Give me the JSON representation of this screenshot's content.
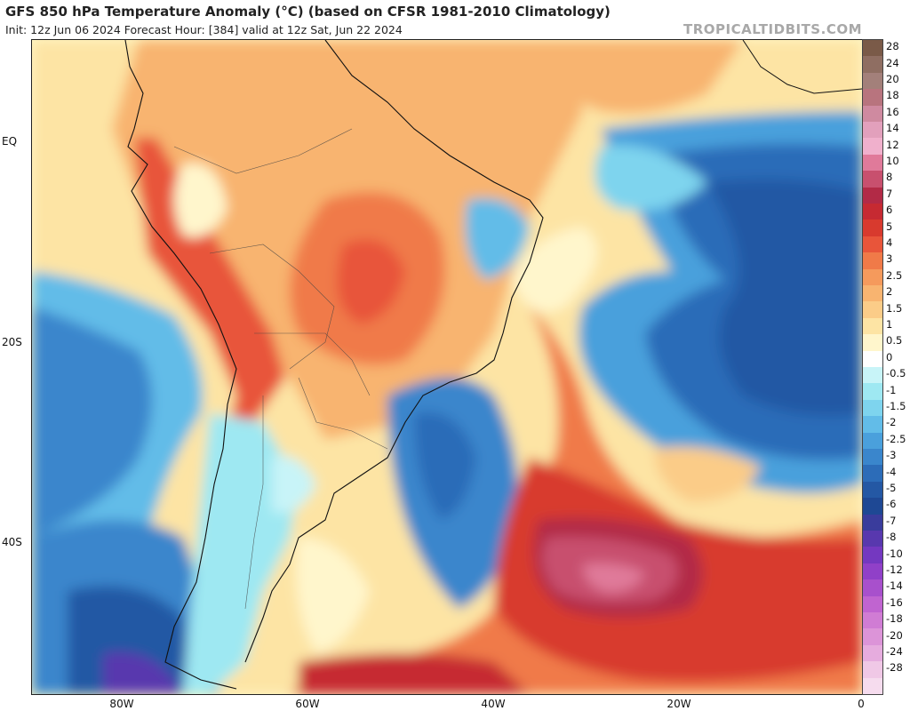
{
  "header": {
    "title": "GFS 850 hPa Temperature Anomaly (°C) (based on CFSR 1981-2010 Climatology)",
    "subtitle": "Init: 12z Jun 06 2024   Forecast Hour: [384]   valid at 12z Sat, Jun 22 2024",
    "watermark": "TROPICALTIDBITS.COM"
  },
  "map": {
    "lat_ticks": [
      "EQ",
      "20S",
      "40S"
    ],
    "lon_ticks": [
      "80W",
      "60W",
      "40W",
      "20W",
      "0"
    ]
  },
  "colorbar": {
    "levels": [
      {
        "label": "28",
        "color": "#7a5a48"
      },
      {
        "label": "24",
        "color": "#8f6e62"
      },
      {
        "label": "20",
        "color": "#a3807a"
      },
      {
        "label": "18",
        "color": "#b8747e"
      },
      {
        "label": "16",
        "color": "#cf8aa0"
      },
      {
        "label": "14",
        "color": "#e2a0bc"
      },
      {
        "label": "12",
        "color": "#f0b0cc"
      },
      {
        "label": "10",
        "color": "#e07a9a"
      },
      {
        "label": "8",
        "color": "#c8506e"
      },
      {
        "label": "7",
        "color": "#b22a46"
      },
      {
        "label": "6",
        "color": "#c62a32"
      },
      {
        "label": "5",
        "color": "#d83a2e"
      },
      {
        "label": "4",
        "color": "#e8553a"
      },
      {
        "label": "3",
        "color": "#f07a48"
      },
      {
        "label": "2.5",
        "color": "#f59a5c"
      },
      {
        "label": "2",
        "color": "#f8b470"
      },
      {
        "label": "1.5",
        "color": "#fbcc88"
      },
      {
        "label": "1",
        "color": "#fde4a4"
      },
      {
        "label": "0.5",
        "color": "#fff6cc"
      },
      {
        "label": "0",
        "color": "#ffffff"
      },
      {
        "label": "-0.5",
        "color": "#c8f4f8"
      },
      {
        "label": "-1",
        "color": "#9ee8f2"
      },
      {
        "label": "-1.5",
        "color": "#7ed4ee"
      },
      {
        "label": "-2",
        "color": "#62bce8"
      },
      {
        "label": "-2.5",
        "color": "#4aa0dc"
      },
      {
        "label": "-3",
        "color": "#3a86cc"
      },
      {
        "label": "-4",
        "color": "#2c6cb8"
      },
      {
        "label": "-5",
        "color": "#2458a4"
      },
      {
        "label": "-6",
        "color": "#1e4894"
      },
      {
        "label": "-7",
        "color": "#3a3c9c"
      },
      {
        "label": "-8",
        "color": "#5838ae"
      },
      {
        "label": "-10",
        "color": "#7438c0"
      },
      {
        "label": "-12",
        "color": "#9040c8"
      },
      {
        "label": "-14",
        "color": "#a850cc"
      },
      {
        "label": "-16",
        "color": "#c064d0"
      },
      {
        "label": "-18",
        "color": "#d07cd4"
      },
      {
        "label": "-20",
        "color": "#dc94d8"
      },
      {
        "label": "-24",
        "color": "#e6acde"
      },
      {
        "label": "-28",
        "color": "#f0c8e6"
      },
      {
        "label": "",
        "color": "#f6dcee"
      }
    ]
  }
}
